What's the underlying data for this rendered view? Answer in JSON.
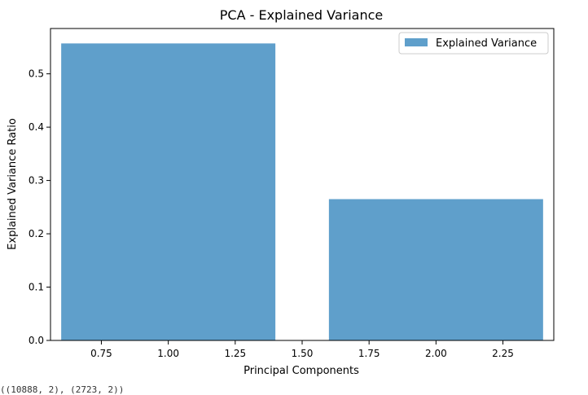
{
  "chart_data": {
    "type": "bar",
    "title": "PCA - Explained Variance",
    "xlabel": "Principal Components",
    "ylabel": "Explained Variance Ratio",
    "bars": [
      {
        "x": 1,
        "value": 0.557
      },
      {
        "x": 2,
        "value": 0.265
      }
    ],
    "bar_width": 0.8,
    "xlim": [
      0.56,
      2.44
    ],
    "ylim": [
      0,
      0.585
    ],
    "xticks": [
      {
        "value": 0.75,
        "label": "0.75"
      },
      {
        "value": 1.0,
        "label": "1.00"
      },
      {
        "value": 1.25,
        "label": "1.25"
      },
      {
        "value": 1.5,
        "label": "1.50"
      },
      {
        "value": 1.75,
        "label": "1.75"
      },
      {
        "value": 2.0,
        "label": "2.00"
      },
      {
        "value": 2.25,
        "label": "2.25"
      }
    ],
    "yticks": [
      {
        "value": 0.0,
        "label": "0.0"
      },
      {
        "value": 0.1,
        "label": "0.1"
      },
      {
        "value": 0.2,
        "label": "0.2"
      },
      {
        "value": 0.3,
        "label": "0.3"
      },
      {
        "value": 0.4,
        "label": "0.4"
      },
      {
        "value": 0.5,
        "label": "0.5"
      }
    ],
    "series": [
      {
        "name": "Explained Variance",
        "color": "#5f9fcb"
      }
    ],
    "legend_position": "top-right",
    "grid": false
  },
  "output": {
    "text": "((10888, 2), (2723, 2))"
  }
}
